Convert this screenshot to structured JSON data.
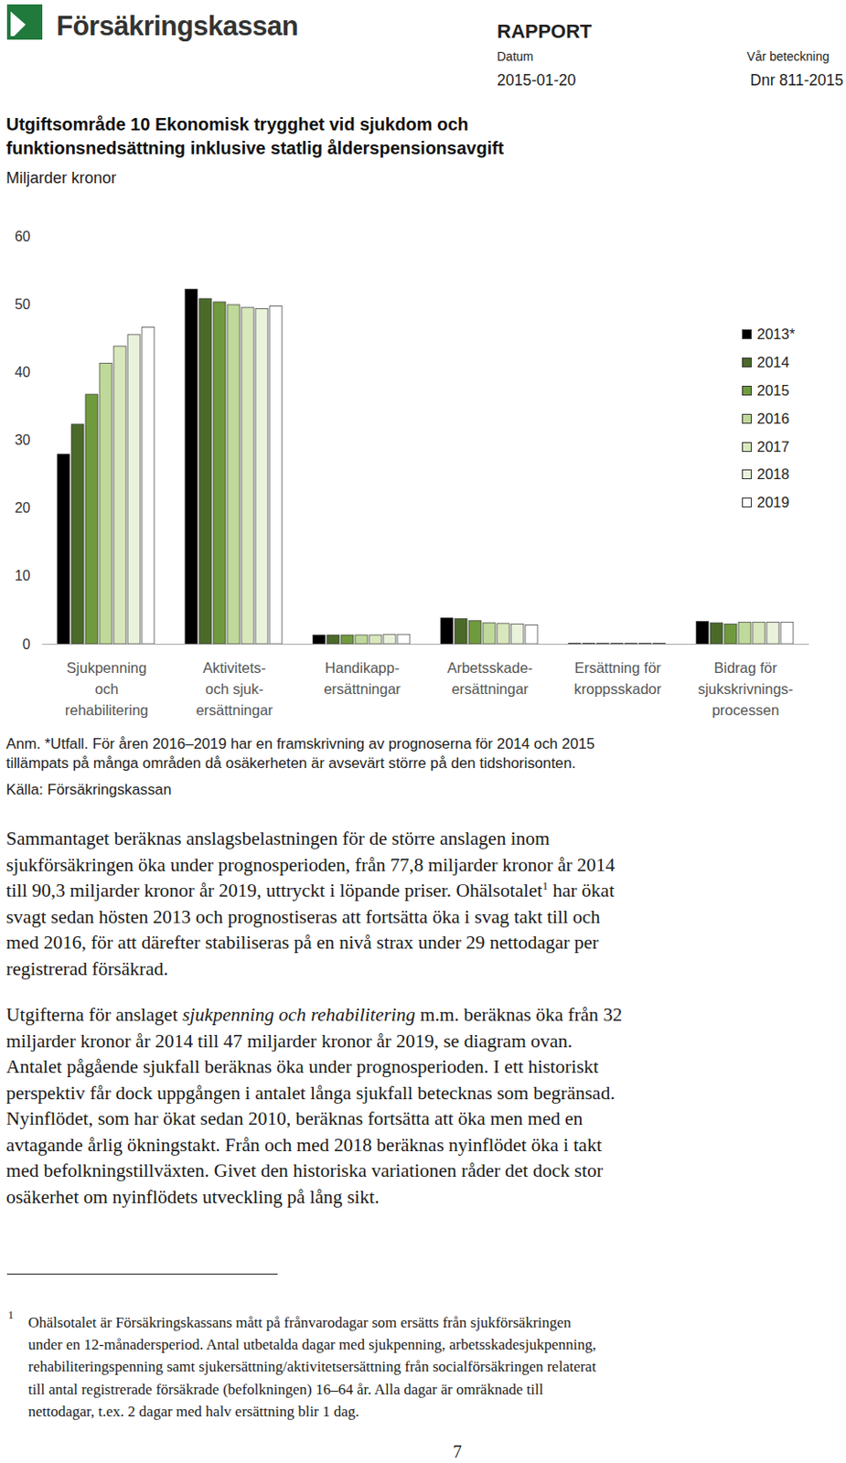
{
  "header": {
    "logo": "Försäkringskassan",
    "doc_type": "RAPPORT",
    "date_label": "Datum",
    "date": "2015-01-20",
    "ref_label": "Vår beteckning",
    "ref": "Dnr 811-2015"
  },
  "chart_data": {
    "type": "bar",
    "title": "Utgiftsområde 10 Ekonomisk trygghet vid sjukdom och\nfunktionsnedsättning inklusive statlig ålderspensionsavgift",
    "subtitle": "Miljarder kronor",
    "categories": [
      "Sjukpenning\noch\nrehabilitering",
      "Aktivitets-\noch sjuk-\nersättningar",
      "Handikapp-\nersättningar",
      "Arbetsskade-\nersättningar",
      "Ersättning för\nkroppsskador",
      "Bidrag för\nsjukskrivnings-\nprocessen"
    ],
    "series": [
      {
        "name": "2013*",
        "color": "#000000",
        "values": [
          27.9,
          52.2,
          1.3,
          3.8,
          0.1,
          3.3
        ]
      },
      {
        "name": "2014",
        "color": "#4b6a2a",
        "values": [
          32.3,
          50.8,
          1.3,
          3.7,
          0.1,
          3.1
        ]
      },
      {
        "name": "2015",
        "color": "#6f9a3e",
        "values": [
          36.7,
          50.3,
          1.3,
          3.4,
          0.1,
          2.9
        ]
      },
      {
        "name": "2016",
        "color": "#bfd99a",
        "values": [
          41.3,
          49.9,
          1.3,
          3.1,
          0.1,
          3.2
        ]
      },
      {
        "name": "2017",
        "color": "#d8e8bc",
        "values": [
          43.8,
          49.5,
          1.3,
          3.0,
          0.1,
          3.2
        ]
      },
      {
        "name": "2018",
        "color": "#eaf2dc",
        "values": [
          45.5,
          49.3,
          1.4,
          2.9,
          0.1,
          3.2
        ]
      },
      {
        "name": "2019",
        "color": "#ffffff",
        "values": [
          46.6,
          49.7,
          1.4,
          2.8,
          0.1,
          3.2
        ]
      }
    ],
    "ylim": [
      0,
      60
    ],
    "yticks": [
      0,
      10,
      20,
      30,
      40,
      50,
      60
    ],
    "grid": false,
    "legend": "right"
  },
  "notes": [
    [
      "Anm. *Utfall. För åren 2016–2019 har en framskrivning av prognoserna för 2014 och 2015",
      "tillämpats på många områden då osäkerheten är avsevärt större på den tidshorisonten."
    ],
    [
      "Källa: Försäkringskassan"
    ]
  ],
  "body": [
    [
      "Sammantaget beräknas anslagsbelastningen för de större anslagen inom",
      "sjukförsäkringen öka under prognosperioden, från 77,8 miljarder kronor år 2014",
      [
        "till 90,3 miljarder kronor år 2019, uttryckt i löpande priser. Ohälsotalet",
        {
          "text": "1",
          "style": "sup"
        },
        " har ökat"
      ],
      "svagt sedan hösten 2013 och prognostiseras att fortsätta öka i svag takt till och",
      "med 2016, för att därefter stabiliseras på en nivå strax under 29 nettodagar per",
      "registrerad försäkrad."
    ],
    [
      [
        "Utgifterna för anslaget ",
        {
          "text": "sjukpenning och rehabilitering",
          "style": "italic"
        },
        " m.m. beräknas öka från 32"
      ],
      "miljarder kronor år 2014 till 47 miljarder kronor år 2019, se diagram ovan.",
      "Antalet pågående sjukfall beräknas öka under prognosperioden. I ett historiskt",
      "perspektiv får dock uppgången i antalet långa sjukfall betecknas som begränsad.",
      "Nyinflödet, som har ökat sedan 2010, beräknas fortsätta att öka men med en",
      "avtagande årlig ökningstakt. Från och med 2018 beräknas nyinflödet öka i takt",
      "med befolkningstillväxten. Givet den historiska variationen råder det dock stor",
      "osäkerhet om nyinflödets utveckling på lång sikt."
    ]
  ],
  "footnote": {
    "mark": "1",
    "lines": [
      "Ohälsotalet är Försäkringskassans mått på frånvarodagar som ersätts från sjukförsäkringen",
      "under en 12-månadersperiod. Antal utbetalda dagar med sjukpenning, arbetsskadesjukpenning,",
      "rehabiliteringspenning samt sjukersättning/aktivitetsersättning från socialförsäkringen relaterat",
      "till antal registrerade försäkrade (befolkningen) 16–64 år. Alla dagar är omräknade till",
      "nettodagar, t.ex. 2 dagar med halv ersättning blir 1 dag."
    ]
  },
  "page_number": "7"
}
